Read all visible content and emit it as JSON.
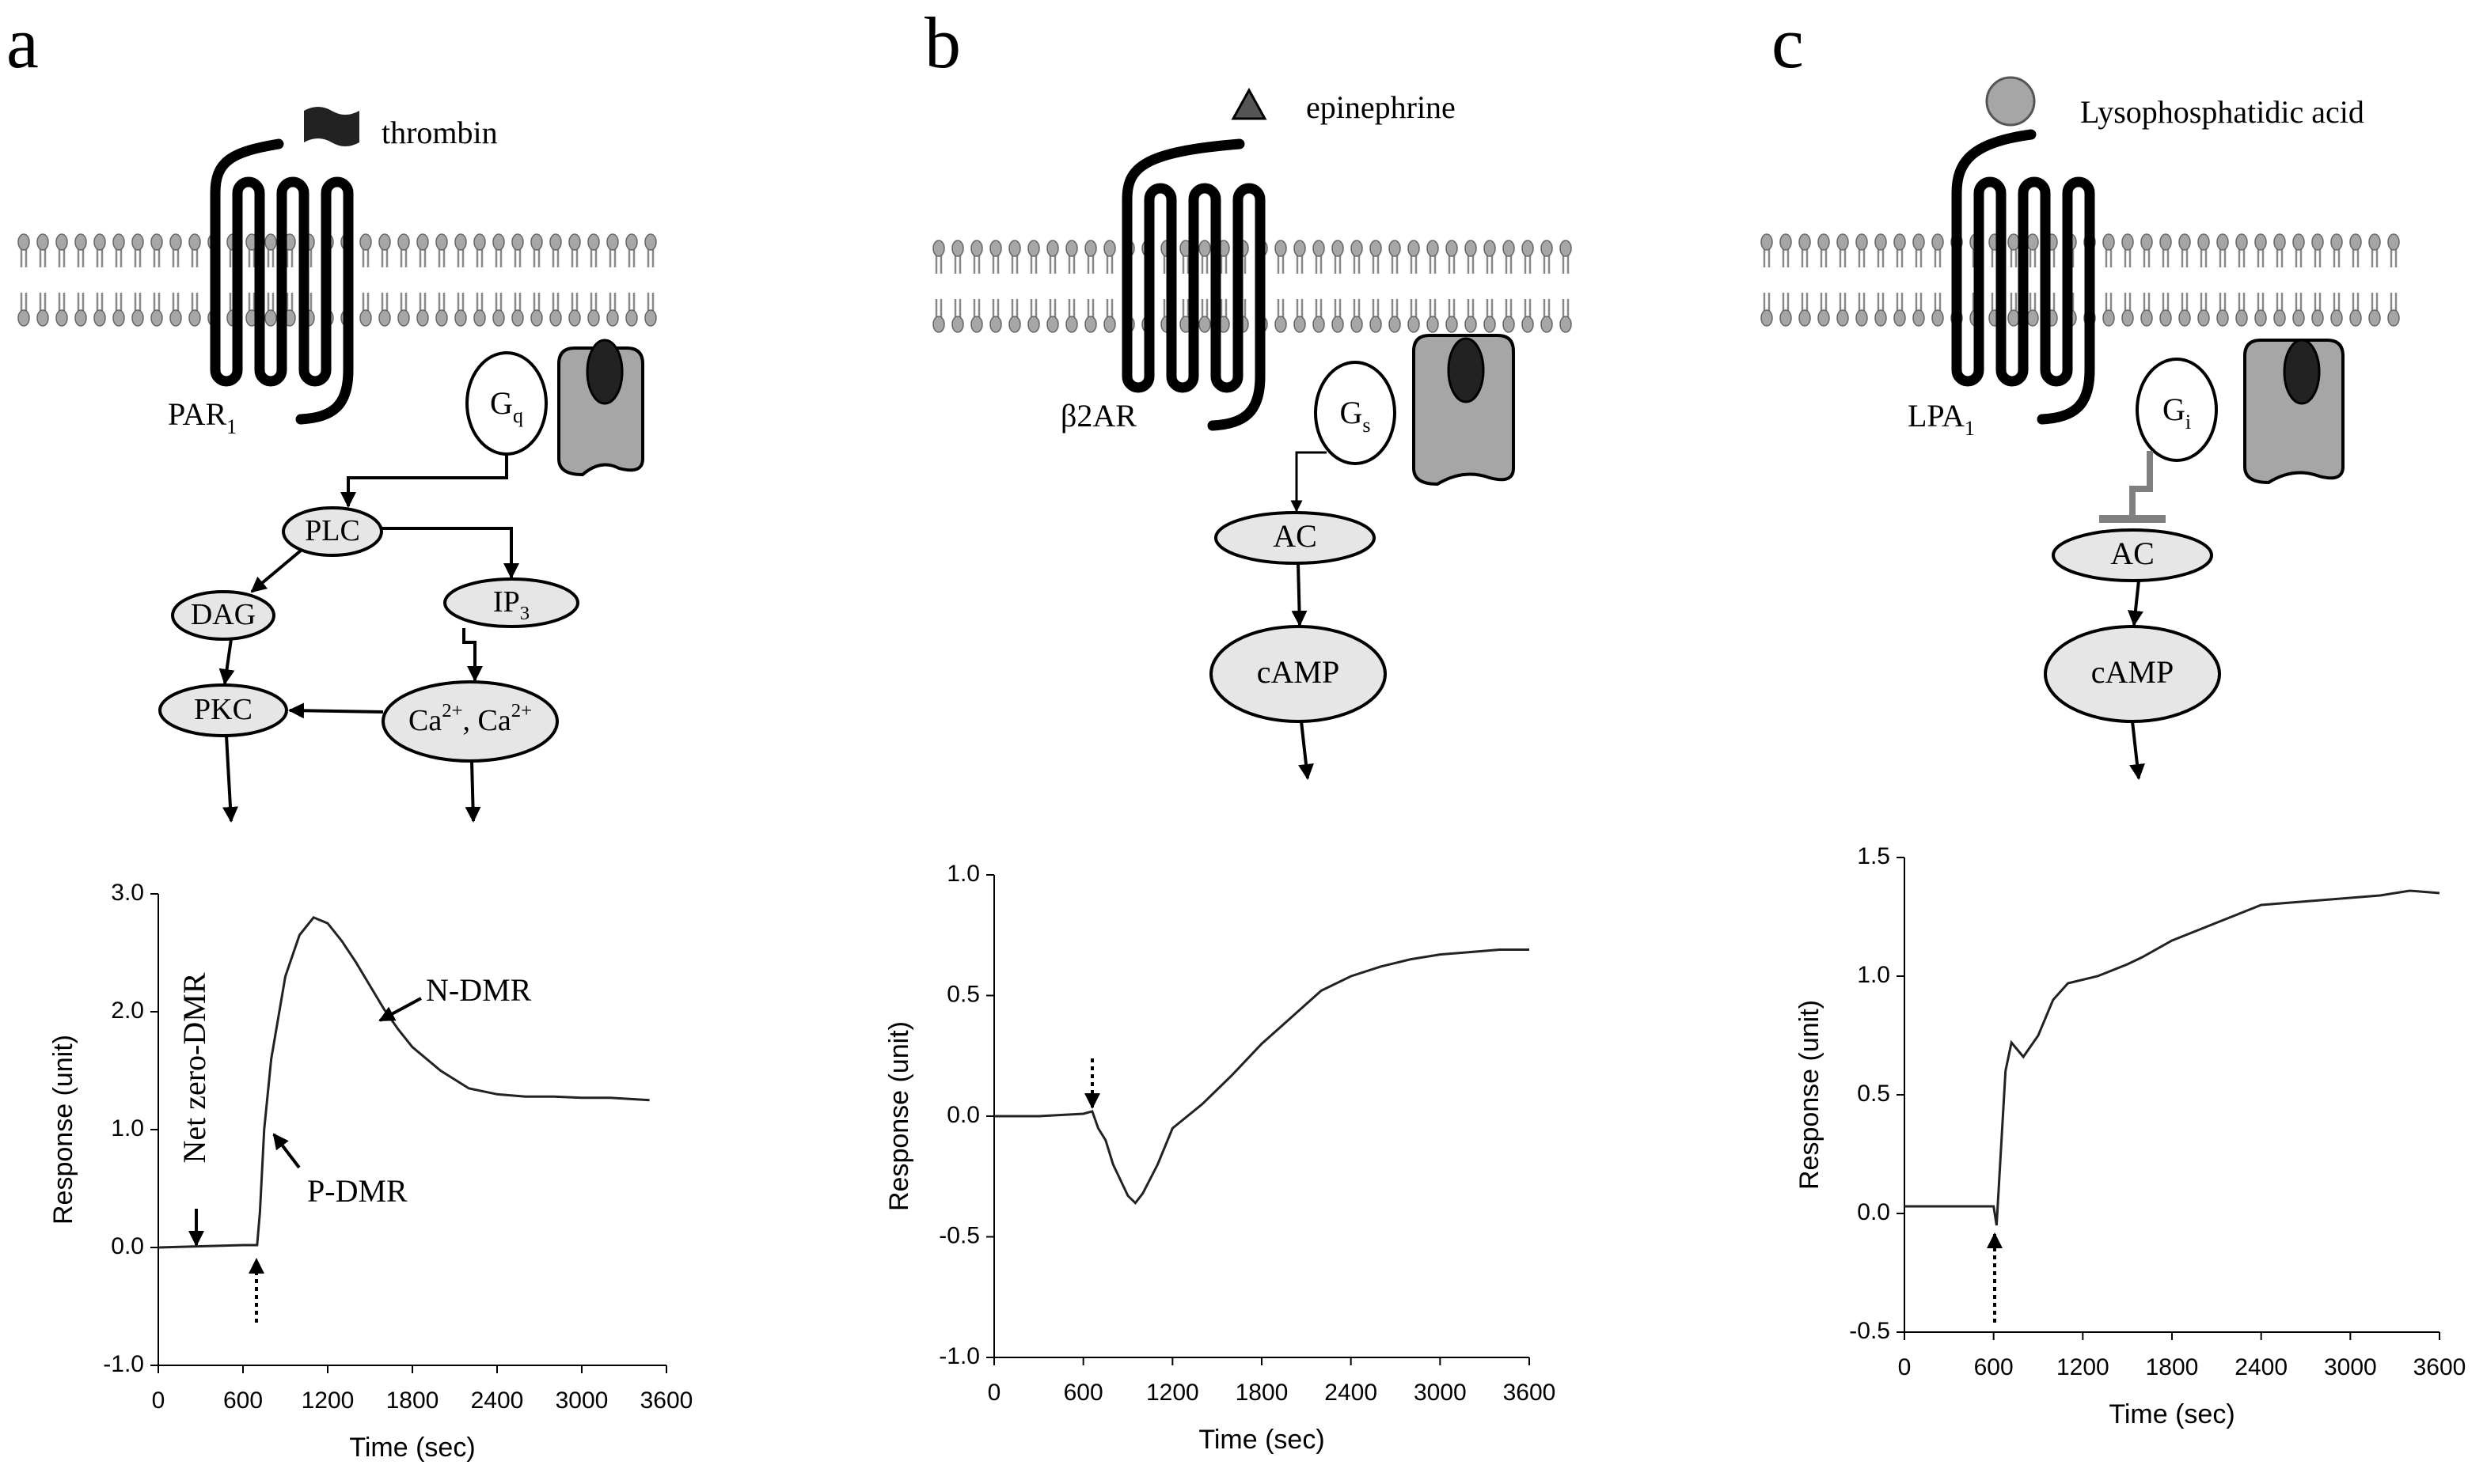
{
  "panels": [
    {
      "label": "a",
      "ligand": "thrombin",
      "receptor": [
        {
          "text": "PAR"
        },
        {
          "text": "1",
          "shift": "sub"
        }
      ],
      "g_protein": [
        {
          "text": "G"
        },
        {
          "text": "q",
          "shift": "sub"
        }
      ],
      "nodes": [
        [
          {
            "text": "PLC"
          }
        ],
        [
          {
            "text": "DAG"
          }
        ],
        [
          {
            "text": "IP"
          },
          {
            "text": "3",
            "shift": "sub"
          }
        ],
        [
          {
            "text": "PKC"
          }
        ],
        [
          {
            "text": "Ca"
          },
          {
            "text": "2+",
            "shift": "super"
          },
          {
            "text": ", Ca"
          },
          {
            "text": "2+",
            "shift": "super"
          }
        ]
      ]
    },
    {
      "label": "b",
      "ligand": "epinephrine",
      "receptor": [
        {
          "text": "β2AR"
        }
      ],
      "g_protein": [
        {
          "text": "G"
        },
        {
          "text": "s",
          "shift": "sub"
        }
      ],
      "nodes": [
        [
          {
            "text": "AC"
          }
        ],
        [
          {
            "text": "cAMP"
          }
        ]
      ]
    },
    {
      "label": "c",
      "ligand": "Lysophosphatidic acid",
      "receptor": [
        {
          "text": "LPA"
        },
        {
          "text": "1",
          "shift": "sub"
        }
      ],
      "g_protein": [
        {
          "text": "G"
        },
        {
          "text": "i",
          "shift": "sub"
        }
      ],
      "nodes": [
        [
          {
            "text": "AC"
          }
        ],
        [
          {
            "text": "cAMP"
          }
        ]
      ]
    }
  ],
  "chart_data": [
    {
      "type": "line",
      "xlabel": "Time (sec)",
      "ylabel": "Response (unit)",
      "color": "#222222",
      "xlim": [
        0,
        3600
      ],
      "xticks": [
        0,
        600,
        1200,
        1800,
        2400,
        3000,
        3600
      ],
      "ylim": [
        -1,
        3
      ],
      "yticks": [
        {
          "value": -1,
          "label": "-1.0"
        },
        {
          "value": 0,
          "label": "0.0"
        },
        {
          "value": 1,
          "label": "1.0"
        },
        {
          "value": 2,
          "label": "2.0"
        },
        {
          "value": 3,
          "label": "3.0"
        }
      ],
      "annotations": [
        "Net zero-DMR",
        "N-DMR",
        "P-DMR"
      ],
      "x": [
        0,
        300,
        600,
        700,
        720,
        750,
        800,
        900,
        1000,
        1100,
        1200,
        1300,
        1400,
        1500,
        1600,
        1700,
        1800,
        2000,
        2200,
        2400,
        2600,
        2800,
        3000,
        3200,
        3480
      ],
      "values": [
        0,
        0.01,
        0.02,
        0.02,
        0.3,
        1.0,
        1.6,
        2.3,
        2.65,
        2.8,
        2.75,
        2.6,
        2.42,
        2.22,
        2.02,
        1.85,
        1.7,
        1.5,
        1.35,
        1.3,
        1.28,
        1.28,
        1.27,
        1.27,
        1.25
      ]
    },
    {
      "type": "line",
      "xlabel": "Time (sec)",
      "ylabel": "Response (unit)",
      "color": "#222222",
      "xlim": [
        0,
        3600
      ],
      "xticks": [
        0,
        600,
        1200,
        1800,
        2400,
        3000,
        3600
      ],
      "ylim": [
        -1,
        1
      ],
      "yticks": [
        {
          "value": -1,
          "label": "-1.0"
        },
        {
          "value": -0.5,
          "label": "-0.5"
        },
        {
          "value": 0,
          "label": "0.0"
        },
        {
          "value": 0.5,
          "label": "0.5"
        },
        {
          "value": 1,
          "label": "1.0"
        }
      ],
      "x": [
        0,
        300,
        600,
        660,
        700,
        750,
        800,
        900,
        950,
        1000,
        1100,
        1200,
        1400,
        1600,
        1800,
        2000,
        2200,
        2400,
        2600,
        2800,
        3000,
        3200,
        3400,
        3600
      ],
      "values": [
        0,
        0,
        0.01,
        0.02,
        -0.05,
        -0.1,
        -0.2,
        -0.33,
        -0.36,
        -0.32,
        -0.2,
        -0.05,
        0.05,
        0.17,
        0.3,
        0.41,
        0.52,
        0.58,
        0.62,
        0.65,
        0.67,
        0.68,
        0.69,
        0.69
      ]
    },
    {
      "type": "line",
      "xlabel": "Time (sec)",
      "ylabel": "Response (unit)",
      "color": "#222222",
      "xlim": [
        0,
        3600
      ],
      "xticks": [
        0,
        600,
        1200,
        1800,
        2400,
        3000,
        3600
      ],
      "ylim": [
        -0.5,
        1.5
      ],
      "yticks": [
        -0.5,
        {
          "value": 0,
          "label": "0.0"
        },
        0.5,
        {
          "value": 1,
          "label": "1.0"
        },
        1.5
      ],
      "x": [
        0,
        300,
        600,
        620,
        680,
        720,
        800,
        900,
        1000,
        1100,
        1300,
        1500,
        1600,
        1800,
        2000,
        2200,
        2400,
        2800,
        3200,
        3400,
        3600
      ],
      "values": [
        0.03,
        0.03,
        0.03,
        -0.05,
        0.6,
        0.72,
        0.66,
        0.75,
        0.9,
        0.97,
        1.0,
        1.05,
        1.08,
        1.15,
        1.2,
        1.25,
        1.3,
        1.32,
        1.34,
        1.36,
        1.35
      ]
    }
  ]
}
